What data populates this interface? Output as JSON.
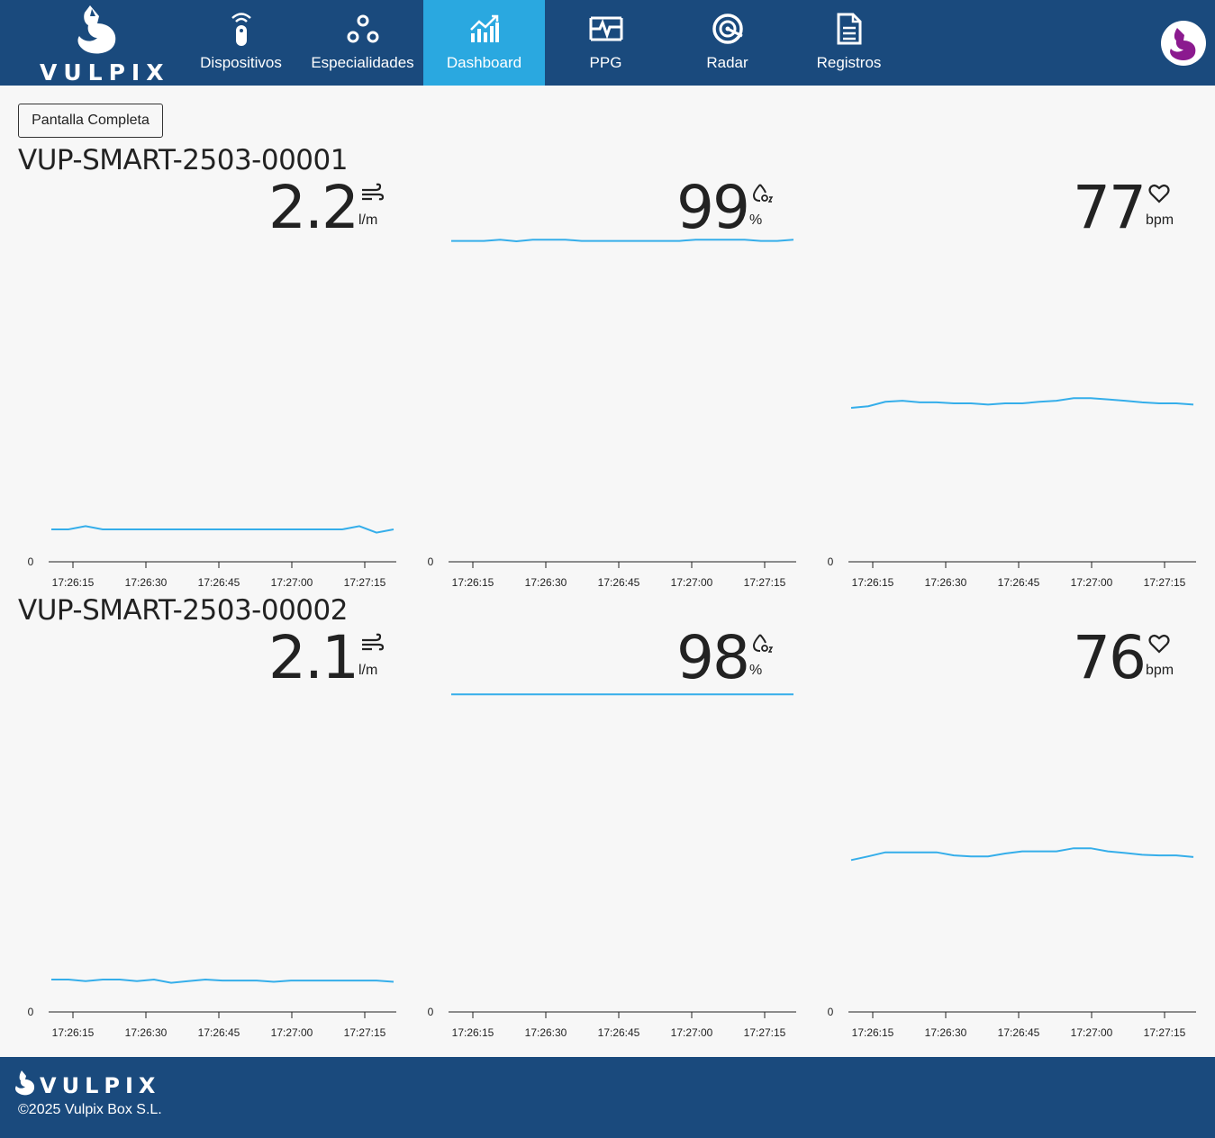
{
  "brand": {
    "name": "VULPIX"
  },
  "nav": {
    "items": [
      {
        "label": "Dispositivos",
        "icon": "remote-icon"
      },
      {
        "label": "Especialidades",
        "icon": "nodes-icon"
      },
      {
        "label": "Dashboard",
        "icon": "chart-icon",
        "active": true
      },
      {
        "label": "PPG",
        "icon": "waveform-icon"
      },
      {
        "label": "Radar",
        "icon": "radar-icon"
      },
      {
        "label": "Registros",
        "icon": "document-icon"
      }
    ]
  },
  "toolbar": {
    "fullscreen_label": "Pantalla Completa"
  },
  "devices": [
    {
      "id": "VUP-SMART-2503-00001",
      "metrics": [
        {
          "value": "2.2",
          "unit": "l/m",
          "icon": "wind-icon"
        },
        {
          "value": "99",
          "unit": "%",
          "icon": "oxygen-drop-icon"
        },
        {
          "value": "77",
          "unit": "bpm",
          "icon": "heart-icon"
        }
      ]
    },
    {
      "id": "VUP-SMART-2503-00002",
      "metrics": [
        {
          "value": "2.1",
          "unit": "l/m",
          "icon": "wind-icon"
        },
        {
          "value": "98",
          "unit": "%",
          "icon": "oxygen-drop-icon"
        },
        {
          "value": "76",
          "unit": "bpm",
          "icon": "heart-icon"
        }
      ]
    }
  ],
  "chart_data": [
    {
      "type": "line",
      "y_axis_min_label": "0",
      "xticks": [
        "17:26:15",
        "17:26:30",
        "17:26:45",
        "17:27:00",
        "17:27:15"
      ],
      "ylim": [
        0,
        10
      ],
      "values": [
        1.0,
        1.0,
        1.1,
        1.0,
        1.0,
        1.0,
        1.0,
        1.0,
        1.0,
        1.0,
        1.0,
        1.0,
        1.0,
        1.0,
        1.0,
        1.0,
        1.0,
        1.0,
        1.1,
        0.9,
        1.0
      ]
    },
    {
      "type": "line",
      "y_axis_min_label": "0",
      "xticks": [
        "17:26:15",
        "17:26:30",
        "17:26:45",
        "17:27:00",
        "17:27:15"
      ],
      "ylim": [
        0,
        100
      ],
      "values": [
        99,
        99,
        99,
        99.4,
        98.9,
        99.4,
        99.4,
        99.4,
        99,
        99,
        99,
        99,
        99,
        99,
        99,
        99.4,
        99.4,
        99.4,
        99.4,
        99,
        99,
        99.4
      ]
    },
    {
      "type": "line",
      "y_axis_min_label": "0",
      "xticks": [
        "17:26:15",
        "17:26:30",
        "17:26:45",
        "17:27:00",
        "17:27:15"
      ],
      "ylim": [
        0,
        160
      ],
      "values": [
        76,
        76.8,
        79,
        79.5,
        78.7,
        78.7,
        78.2,
        78.2,
        77.6,
        78.2,
        78.2,
        79,
        79.5,
        80.8,
        80.8,
        80.2,
        79.5,
        78.7,
        78.2,
        78.2,
        77.6
      ]
    },
    {
      "type": "line",
      "y_axis_min_label": "0",
      "xticks": [
        "17:26:15",
        "17:26:30",
        "17:26:45",
        "17:27:00",
        "17:27:15"
      ],
      "ylim": [
        0,
        10
      ],
      "values": [
        1.0,
        1.0,
        0.95,
        1.0,
        1.0,
        0.95,
        1.0,
        0.9,
        0.95,
        1.0,
        0.97,
        0.97,
        0.97,
        0.93,
        0.97,
        0.97,
        0.97,
        0.97,
        0.97,
        0.97,
        0.93
      ]
    },
    {
      "type": "line",
      "y_axis_min_label": "0",
      "xticks": [
        "17:26:15",
        "17:26:30",
        "17:26:45",
        "17:27:00",
        "17:27:15"
      ],
      "ylim": [
        0,
        100
      ],
      "values": [
        98,
        98,
        98,
        98,
        98,
        98,
        98,
        98,
        98,
        98,
        98,
        98,
        98,
        98,
        98,
        98,
        98,
        98,
        98,
        98,
        98,
        98
      ]
    },
    {
      "type": "line",
      "y_axis_min_label": "0",
      "xticks": [
        "17:26:15",
        "17:26:30",
        "17:26:45",
        "17:27:00",
        "17:27:15"
      ],
      "ylim": [
        0,
        160
      ],
      "values": [
        75,
        76.8,
        78.8,
        78.8,
        78.8,
        78.8,
        77.3,
        76.8,
        76.8,
        78.2,
        79.3,
        79.3,
        79.3,
        80.8,
        80.8,
        79.3,
        78.5,
        77.6,
        77.3,
        77.3,
        76.5
      ]
    }
  ],
  "colors": {
    "nav_bg": "#1a4a7d",
    "nav_active": "#2aa8e0",
    "line": "#35aeea",
    "avatar_accent": "#8b1a8f"
  },
  "footer": {
    "brand": "VULPIX",
    "copyright": "©2025 Vulpix Box S.L."
  }
}
